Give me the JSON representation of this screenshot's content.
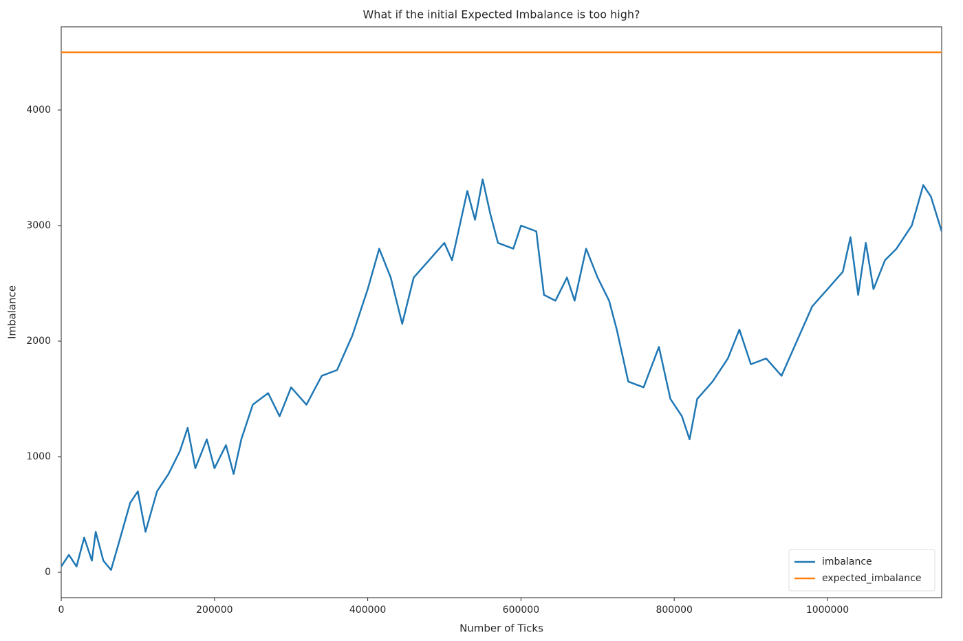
{
  "chart_data": {
    "type": "line",
    "title": "What if the initial Expected Imbalance is too high?",
    "x_label": "Number of Ticks",
    "y_label": "Imbalance",
    "xlim": [
      0,
      1149000
    ],
    "ylim": [
      -220,
      4720
    ],
    "xticks": [
      0,
      200000,
      400000,
      600000,
      800000,
      1000000
    ],
    "yticks": [
      0,
      1000,
      2000,
      3000,
      4000
    ],
    "legend": "lower right",
    "series": [
      {
        "name": "imbalance",
        "color": "#1f77b4",
        "x": [
          0,
          10000,
          20000,
          30000,
          40000,
          45000,
          55000,
          65000,
          75000,
          90000,
          100000,
          110000,
          125000,
          140000,
          155000,
          165000,
          175000,
          190000,
          200000,
          215000,
          225000,
          235000,
          250000,
          270000,
          285000,
          300000,
          320000,
          340000,
          360000,
          380000,
          400000,
          415000,
          430000,
          445000,
          460000,
          480000,
          500000,
          510000,
          520000,
          530000,
          540000,
          550000,
          560000,
          570000,
          590000,
          600000,
          620000,
          630000,
          645000,
          660000,
          670000,
          685000,
          700000,
          715000,
          725000,
          740000,
          760000,
          780000,
          795000,
          810000,
          820000,
          830000,
          850000,
          870000,
          885000,
          900000,
          920000,
          940000,
          960000,
          980000,
          1000000,
          1020000,
          1030000,
          1040000,
          1050000,
          1060000,
          1075000,
          1090000,
          1110000,
          1125000,
          1135000,
          1149000
        ],
        "values": [
          50,
          150,
          50,
          300,
          100,
          350,
          100,
          20,
          250,
          600,
          700,
          350,
          700,
          850,
          1050,
          1250,
          900,
          1150,
          900,
          1100,
          850,
          1150,
          1450,
          1550,
          1350,
          1600,
          1450,
          1700,
          1750,
          2050,
          2450,
          2800,
          2550,
          2150,
          2550,
          2700,
          2850,
          2700,
          3000,
          3300,
          3050,
          3400,
          3100,
          2850,
          2800,
          3000,
          2950,
          2400,
          2350,
          2550,
          2350,
          2800,
          2550,
          2350,
          2100,
          1650,
          1600,
          1950,
          1500,
          1350,
          1150,
          1500,
          1650,
          1850,
          2100,
          1800,
          1850,
          1700,
          2000,
          2300,
          2450,
          2600,
          2900,
          2400,
          2850,
          2450,
          2700,
          2800,
          3000,
          3350,
          3250,
          2950
        ]
      },
      {
        "name": "expected_imbalance",
        "color": "#ff7f0e",
        "x": [
          0,
          1149000
        ],
        "values": [
          4500,
          4500
        ]
      }
    ]
  }
}
